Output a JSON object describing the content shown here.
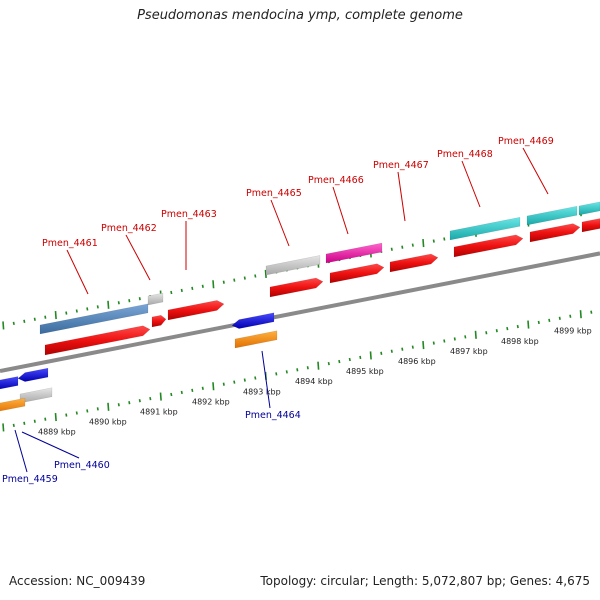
{
  "title": "Pseudomonas mendocina ymp, complete genome",
  "footer": {
    "accession": "Accession: NC_009439",
    "topology": "Topology: circular; Length: 5,072,807 bp; Genes: 4,675"
  },
  "scale_ticks": [
    "4889 kbp",
    "4890 kbp",
    "4891 kbp",
    "4892 kbp",
    "4893 kbp",
    "4894 kbp",
    "4895 kbp",
    "4896 kbp",
    "4897 kbp",
    "4898 kbp",
    "4899 kbp"
  ],
  "genes_top": [
    {
      "name": "Pmen_4461"
    },
    {
      "name": "Pmen_4462"
    },
    {
      "name": "Pmen_4463"
    },
    {
      "name": "Pmen_4465"
    },
    {
      "name": "Pmen_4466"
    },
    {
      "name": "Pmen_4467"
    },
    {
      "name": "Pmen_4468"
    },
    {
      "name": "Pmen_4469"
    }
  ],
  "genes_bottom": [
    {
      "name": "Pmen_4464"
    },
    {
      "name": "Pmen_4460"
    },
    {
      "name": "Pmen_4459"
    }
  ],
  "colors": {
    "forward_label": "#cc0000",
    "reverse_label": "#000099",
    "cds": "#ee1111",
    "backbone": "#888888",
    "ticks": "#228822",
    "blue_feature": "#1a1aee",
    "orange_feature": "#ff8c00",
    "cyan_feature": "#22cccc",
    "magenta_feature": "#ee22aa",
    "steelblue_feature": "#4a7db5",
    "grey_feature": "#c8c8c8"
  }
}
